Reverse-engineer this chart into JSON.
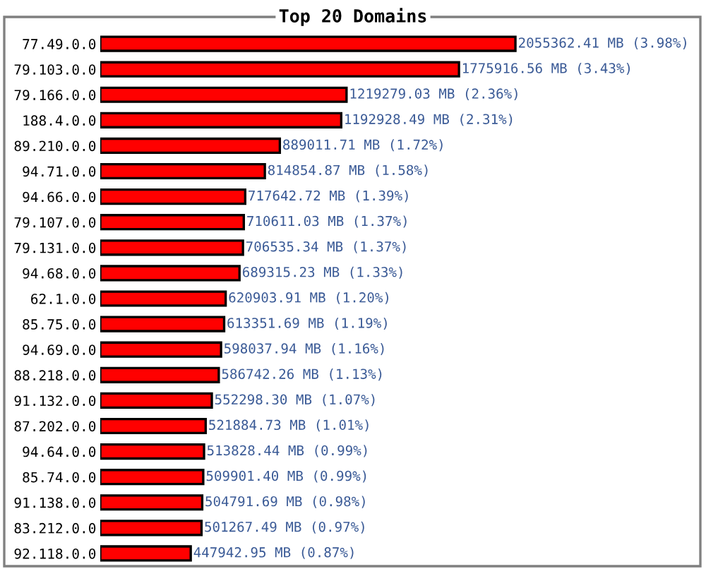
{
  "chart_data": {
    "type": "bar",
    "orientation": "horizontal",
    "title": "Top 20 Domains",
    "categories": [
      "77.49.0.0",
      "79.103.0.0",
      "79.166.0.0",
      "188.4.0.0",
      "89.210.0.0",
      "94.71.0.0",
      "94.66.0.0",
      "79.107.0.0",
      "79.131.0.0",
      "94.68.0.0",
      "62.1.0.0",
      "85.75.0.0",
      "94.69.0.0",
      "88.218.0.0",
      "91.132.0.0",
      "87.202.0.0",
      "94.64.0.0",
      "85.74.0.0",
      "91.138.0.0",
      "83.212.0.0",
      "92.118.0.0"
    ],
    "values": [
      2055362.41,
      1775916.56,
      1219279.03,
      1192928.49,
      889011.71,
      814854.87,
      717642.72,
      710611.03,
      706535.34,
      689315.23,
      620903.91,
      613351.69,
      598037.94,
      586742.26,
      552298.3,
      521884.73,
      513828.44,
      509901.4,
      504791.69,
      501267.49,
      447942.95
    ],
    "value_labels": [
      "2055362.41 MB (3.98%)",
      "1775916.56 MB (3.43%)",
      "1219279.03 MB (2.36%)",
      "1192928.49 MB (2.31%)",
      "889011.71 MB (1.72%)",
      "814854.87 MB (1.58%)",
      "717642.72 MB (1.39%)",
      "710611.03 MB (1.37%)",
      "706535.34 MB (1.37%)",
      "689315.23 MB (1.33%)",
      "620903.91 MB (1.20%)",
      "613351.69 MB (1.19%)",
      "598037.94 MB (1.16%)",
      "586742.26 MB (1.13%)",
      "552298.30 MB (1.07%)",
      "521884.73 MB (1.01%)",
      "513828.44 MB (0.99%)",
      "509901.40 MB (0.99%)",
      "504791.69 MB (0.98%)",
      "501267.49 MB (0.97%)",
      "447942.95 MB (0.87%)"
    ],
    "color": "#ff0000",
    "grid": false,
    "legend": false,
    "tick_labels": "y"
  }
}
